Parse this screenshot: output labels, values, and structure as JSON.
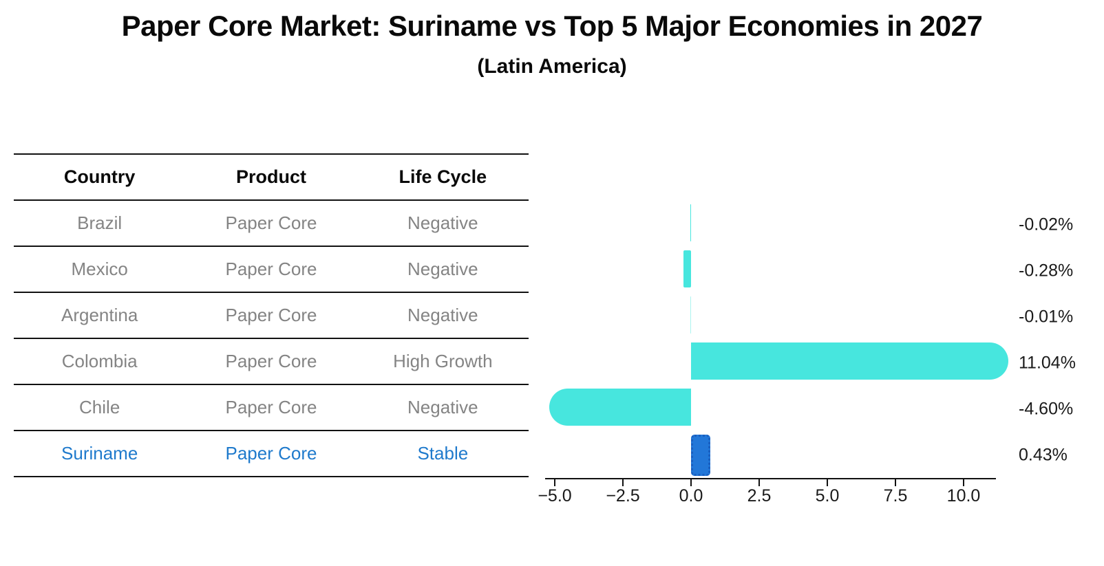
{
  "title": "Paper Core Market: Suriname vs Top 5 Major Economies in 2027",
  "subtitle": "(Latin America)",
  "table": {
    "headers": [
      "Country",
      "Product",
      "Life Cycle"
    ],
    "rows": [
      {
        "country": "Brazil",
        "product": "Paper Core",
        "life_cycle": "Negative",
        "highlight": false
      },
      {
        "country": "Mexico",
        "product": "Paper Core",
        "life_cycle": "Negative",
        "highlight": false
      },
      {
        "country": "Argentina",
        "product": "Paper Core",
        "life_cycle": "Negative",
        "highlight": false
      },
      {
        "country": "Colombia",
        "product": "Paper Core",
        "life_cycle": "High Growth",
        "highlight": false
      },
      {
        "country": "Chile",
        "product": "Paper Core",
        "life_cycle": "Negative",
        "highlight": false
      },
      {
        "country": "Suriname",
        "product": "Paper Core",
        "life_cycle": "Stable",
        "highlight": true
      }
    ]
  },
  "chart_data": {
    "type": "bar",
    "orientation": "horizontal",
    "categories": [
      "Brazil",
      "Mexico",
      "Argentina",
      "Colombia",
      "Chile",
      "Suriname"
    ],
    "values": [
      -0.02,
      -0.28,
      -0.01,
      11.04,
      -4.6,
      0.43
    ],
    "value_labels": [
      "-0.02%",
      "-0.28%",
      "-0.01%",
      "11.04%",
      "-4.60%",
      "0.43%"
    ],
    "x_ticks": [
      -5.0,
      -2.5,
      0.0,
      2.5,
      5.0,
      7.5,
      10.0
    ],
    "x_tick_labels": [
      "−5.0",
      "−2.5",
      "0.0",
      "2.5",
      "5.0",
      "7.5",
      "10.0"
    ],
    "xlim": [
      -5.4,
      11.2
    ],
    "grid": false,
    "legend": false,
    "highlight_index": 5,
    "bar_color": "#47E6DE",
    "highlight_bar_color": "#2277D8",
    "highlight_bar_edge_color": "#1A5FBF",
    "highlight_text_color": "#1F7ACC",
    "text_color_muted": "#848484"
  }
}
